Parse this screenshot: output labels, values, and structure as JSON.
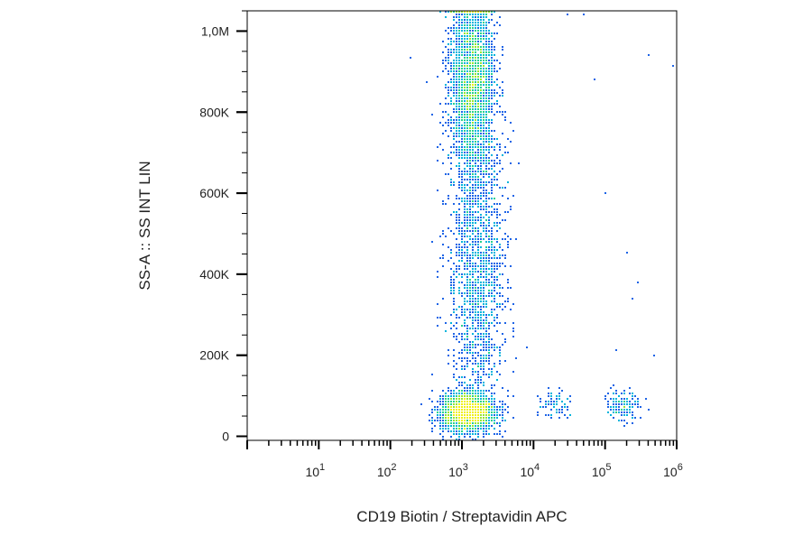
{
  "chart_data": {
    "type": "scatter",
    "title": "",
    "xlabel": "CD19 Biotin / Streptavidin APC",
    "ylabel": "SS-A :: SS INT LIN",
    "x_scale": "log",
    "xlim": [
      1,
      1000000
    ],
    "ylim": [
      -10000,
      1050000
    ],
    "x_tick_labels": [
      {
        "base": "10",
        "exp": "1",
        "value": 10
      },
      {
        "base": "10",
        "exp": "2",
        "value": 100
      },
      {
        "base": "10",
        "exp": "3",
        "value": 1000
      },
      {
        "base": "10",
        "exp": "4",
        "value": 10000
      },
      {
        "base": "10",
        "exp": "5",
        "value": 100000
      },
      {
        "base": "10",
        "exp": "6",
        "value": 1000000
      }
    ],
    "y_tick_labels": [
      {
        "label": "0",
        "value": 0
      },
      {
        "label": "200K",
        "value": 200000
      },
      {
        "label": "400K",
        "value": 400000
      },
      {
        "label": "600K",
        "value": 600000
      },
      {
        "label": "800K",
        "value": 800000
      },
      {
        "label": "1,0M",
        "value": 1000000
      }
    ],
    "grid": false,
    "colormap": [
      "#1414c8",
      "#1e64e6",
      "#00b4dc",
      "#28d28c",
      "#96e632",
      "#f0f014"
    ],
    "populations": [
      {
        "x_center": 1200,
        "x_log_spread": 0.18,
        "y_center": 60000,
        "y_spread": 22000,
        "count": 2600
      },
      {
        "x_center": 1400,
        "x_log_spread": 0.15,
        "y_center": 880000,
        "y_spread": 110000,
        "count": 2800
      },
      {
        "x_center": 1700,
        "x_log_spread": 0.2,
        "y_center": 420000,
        "y_spread": 200000,
        "count": 1800
      },
      {
        "x_center": 20000,
        "x_log_spread": 0.12,
        "y_center": 80000,
        "y_spread": 15000,
        "count": 80
      },
      {
        "x_center": 180000,
        "x_log_spread": 0.12,
        "y_center": 75000,
        "y_spread": 18000,
        "count": 160
      }
    ],
    "outliers": [
      {
        "x": 200,
        "y": 930000
      },
      {
        "x": 30000,
        "y": 1040000
      },
      {
        "x": 50000,
        "y": 1040000
      },
      {
        "x": 70000,
        "y": 880000
      },
      {
        "x": 100000,
        "y": 600000
      },
      {
        "x": 200000,
        "y": 450000
      },
      {
        "x": 250000,
        "y": 340000
      },
      {
        "x": 300000,
        "y": 380000
      },
      {
        "x": 400000,
        "y": 940000
      },
      {
        "x": 500000,
        "y": 200000
      },
      {
        "x": 900000,
        "y": 910000
      },
      {
        "x": 150000,
        "y": 210000
      }
    ]
  }
}
